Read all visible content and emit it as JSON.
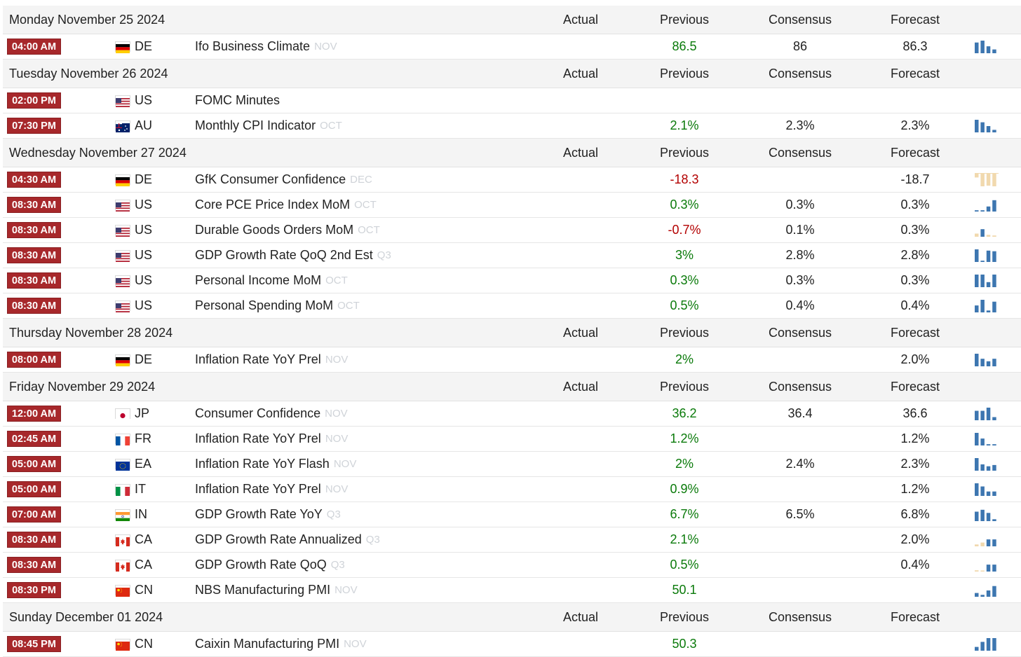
{
  "columns": {
    "actual": "Actual",
    "previous": "Previous",
    "consensus": "Consensus",
    "forecast": "Forecast"
  },
  "colors": {
    "badge": "#a7282b",
    "positive": "#0a7a0a",
    "negative": "#b30000",
    "spark_blue": "#3d76b0",
    "spark_tan": "#f1d9ae"
  },
  "days": [
    {
      "date": "Monday November 25 2024",
      "events": [
        {
          "time": "04:00 AM",
          "country": "DE",
          "event": "Ifo Business Climate",
          "period": "NOV",
          "actual": "",
          "previous": "86.5",
          "prev_color": "pos",
          "consensus": "86",
          "forecast": "86.3",
          "spark": "blue",
          "spark_values": [
            0.85,
            1.0,
            0.55,
            0.3
          ]
        }
      ]
    },
    {
      "date": "Tuesday November 26 2024",
      "events": [
        {
          "time": "02:00 PM",
          "country": "US",
          "event": "FOMC Minutes",
          "period": "",
          "actual": "",
          "previous": "",
          "prev_color": "pos",
          "consensus": "",
          "forecast": "",
          "spark": "none",
          "spark_values": []
        },
        {
          "time": "07:30 PM",
          "country": "AU",
          "event": "Monthly CPI Indicator",
          "period": "OCT",
          "actual": "",
          "previous": "2.1%",
          "prev_color": "pos",
          "consensus": "2.3%",
          "forecast": "2.3%",
          "spark": "blue",
          "spark_values": [
            1.0,
            0.8,
            0.5,
            0.2
          ]
        }
      ]
    },
    {
      "date": "Wednesday November 27 2024",
      "events": [
        {
          "time": "04:30 AM",
          "country": "DE",
          "event": "GfK Consumer Confidence",
          "period": "DEC",
          "actual": "",
          "previous": "-18.3",
          "prev_color": "neg",
          "consensus": "",
          "forecast": "-18.7",
          "spark": "tan",
          "spark_values": [
            0.3,
            1.0,
            0.95,
            1.0
          ]
        },
        {
          "time": "08:30 AM",
          "country": "US",
          "event": "Core PCE Price Index MoM",
          "period": "OCT",
          "actual": "",
          "previous": "0.3%",
          "prev_color": "pos",
          "consensus": "0.3%",
          "forecast": "0.3%",
          "spark": "blue",
          "spark_values": [
            0.1,
            0.1,
            0.4,
            0.9
          ]
        },
        {
          "time": "08:30 AM",
          "country": "US",
          "event": "Durable Goods Orders MoM",
          "period": "OCT",
          "actual": "",
          "previous": "-0.7%",
          "prev_color": "neg",
          "consensus": "0.1%",
          "forecast": "0.3%",
          "spark": "mixed",
          "spark_values": [
            0.25,
            0.6,
            0.15,
            0.1
          ]
        },
        {
          "time": "08:30 AM",
          "country": "US",
          "event": "GDP Growth Rate QoQ 2nd Est",
          "period": "Q3",
          "actual": "",
          "previous": "3%",
          "prev_color": "pos",
          "consensus": "2.8%",
          "forecast": "2.8%",
          "spark": "blue",
          "spark_values": [
            1.0,
            0.1,
            0.9,
            0.85
          ]
        },
        {
          "time": "08:30 AM",
          "country": "US",
          "event": "Personal Income MoM",
          "period": "OCT",
          "actual": "",
          "previous": "0.3%",
          "prev_color": "pos",
          "consensus": "0.3%",
          "forecast": "0.3%",
          "spark": "blue",
          "spark_values": [
            1.0,
            1.0,
            0.4,
            1.0
          ]
        },
        {
          "time": "08:30 AM",
          "country": "US",
          "event": "Personal Spending MoM",
          "period": "OCT",
          "actual": "",
          "previous": "0.5%",
          "prev_color": "pos",
          "consensus": "0.4%",
          "forecast": "0.4%",
          "spark": "blue",
          "spark_values": [
            0.55,
            1.0,
            0.15,
            0.85
          ]
        }
      ]
    },
    {
      "date": "Thursday November 28 2024",
      "events": [
        {
          "time": "08:00 AM",
          "country": "DE",
          "event": "Inflation Rate YoY Prel",
          "period": "NOV",
          "actual": "",
          "previous": "2%",
          "prev_color": "pos",
          "consensus": "",
          "forecast": "2.0%",
          "spark": "blue",
          "spark_values": [
            1.0,
            0.6,
            0.4,
            0.6
          ]
        }
      ]
    },
    {
      "date": "Friday November 29 2024",
      "events": [
        {
          "time": "12:00 AM",
          "country": "JP",
          "event": "Consumer Confidence",
          "period": "NOV",
          "actual": "",
          "previous": "36.2",
          "prev_color": "pos",
          "consensus": "36.4",
          "forecast": "36.6",
          "spark": "blue",
          "spark_values": [
            0.75,
            0.75,
            1.0,
            0.25
          ]
        },
        {
          "time": "02:45 AM",
          "country": "FR",
          "event": "Inflation Rate YoY Prel",
          "period": "NOV",
          "actual": "",
          "previous": "1.2%",
          "prev_color": "pos",
          "consensus": "",
          "forecast": "1.2%",
          "spark": "blue",
          "spark_values": [
            1.0,
            0.55,
            0.1,
            0.1
          ]
        },
        {
          "time": "05:00 AM",
          "country": "EA",
          "event": "Inflation Rate YoY Flash",
          "period": "NOV",
          "actual": "",
          "previous": "2%",
          "prev_color": "pos",
          "consensus": "2.4%",
          "forecast": "2.3%",
          "spark": "blue",
          "spark_values": [
            1.0,
            0.5,
            0.35,
            0.45
          ]
        },
        {
          "time": "05:00 AM",
          "country": "IT",
          "event": "Inflation Rate YoY Prel",
          "period": "NOV",
          "actual": "",
          "previous": "0.9%",
          "prev_color": "pos",
          "consensus": "",
          "forecast": "1.2%",
          "spark": "blue",
          "spark_values": [
            1.0,
            0.75,
            0.35,
            0.35
          ]
        },
        {
          "time": "07:00 AM",
          "country": "IN",
          "event": "GDP Growth Rate YoY",
          "period": "Q3",
          "actual": "",
          "previous": "6.7%",
          "prev_color": "pos",
          "consensus": "6.5%",
          "forecast": "6.8%",
          "spark": "blue",
          "spark_values": [
            0.75,
            0.9,
            0.65,
            0.15
          ]
        },
        {
          "time": "08:30 AM",
          "country": "CA",
          "event": "GDP Growth Rate Annualized",
          "period": "Q3",
          "actual": "",
          "previous": "2.1%",
          "prev_color": "pos",
          "consensus": "",
          "forecast": "2.0%",
          "spark": "mixed",
          "spark_values": [
            0.15,
            0.3,
            0.55,
            0.55
          ]
        },
        {
          "time": "08:30 AM",
          "country": "CA",
          "event": "GDP Growth Rate QoQ",
          "period": "Q3",
          "actual": "",
          "previous": "0.5%",
          "prev_color": "pos",
          "consensus": "",
          "forecast": "0.4%",
          "spark": "mixed",
          "spark_values": [
            0.1,
            0.0,
            0.55,
            0.55
          ]
        },
        {
          "time": "08:30 PM",
          "country": "CN",
          "event": "NBS Manufacturing PMI",
          "period": "NOV",
          "actual": "",
          "previous": "50.1",
          "prev_color": "pos",
          "consensus": "",
          "forecast": "",
          "spark": "blue",
          "spark_values": [
            0.3,
            0.15,
            0.5,
            0.85
          ]
        }
      ]
    },
    {
      "date": "Sunday December 01 2024",
      "events": [
        {
          "time": "08:45 PM",
          "country": "CN",
          "event": "Caixin Manufacturing PMI",
          "period": "NOV",
          "actual": "",
          "previous": "50.3",
          "prev_color": "pos",
          "consensus": "",
          "forecast": "",
          "spark": "blue",
          "spark_values": [
            0.3,
            0.7,
            1.0,
            1.0
          ]
        }
      ]
    }
  ]
}
